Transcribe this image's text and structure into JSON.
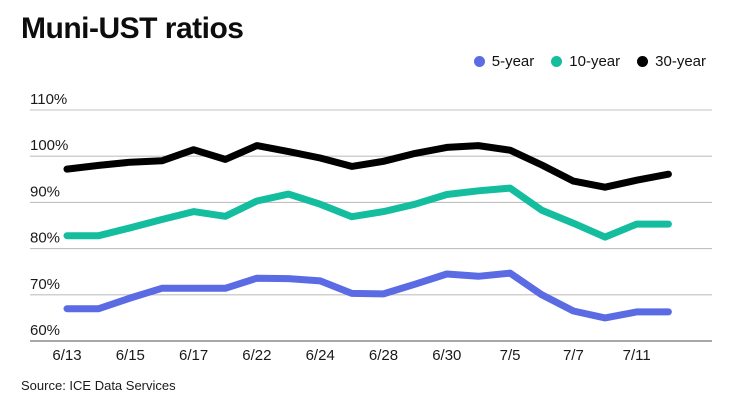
{
  "header": {
    "title": "Muni-UST ratios"
  },
  "legend": [
    {
      "label": "5-year",
      "color": "#5a6be4"
    },
    {
      "label": "10-year",
      "color": "#14bd9d"
    },
    {
      "label": "30-year",
      "color": "#000000"
    }
  ],
  "source": "Source: ICE Data Services",
  "colors": {
    "gridline": "#c0c0c0",
    "baseline": "#8c8c8c",
    "axis_text": "#1a1a1a",
    "background": "#ffffff"
  },
  "chart_data": {
    "type": "line",
    "title": "Muni-UST ratios",
    "xlabel": "",
    "ylabel": "",
    "ylim": [
      60,
      110
    ],
    "yticks": [
      60,
      70,
      80,
      90,
      100,
      110
    ],
    "ytick_suffix": "%",
    "grid": "horizontal",
    "legend_position": "top-right",
    "x": [
      "6/13",
      "6/14",
      "6/15",
      "6/16",
      "6/17",
      "6/21",
      "6/22",
      "6/23",
      "6/24",
      "6/27",
      "6/28",
      "6/29",
      "6/30",
      "7/1",
      "7/5",
      "7/6",
      "7/7",
      "7/8",
      "7/11",
      "7/12"
    ],
    "x_tick_labels": [
      "6/13",
      "6/15",
      "6/17",
      "6/22",
      "6/24",
      "6/28",
      "6/30",
      "7/5",
      "7/7",
      "7/11"
    ],
    "series": [
      {
        "name": "5-year",
        "color": "#5a6be4",
        "values": [
          67.0,
          67.0,
          69.3,
          71.4,
          71.4,
          71.4,
          73.6,
          73.5,
          73.0,
          70.3,
          70.2,
          72.3,
          74.5,
          74.0,
          74.7,
          70.0,
          66.5,
          65.0,
          66.3,
          66.3
        ]
      },
      {
        "name": "10-year",
        "color": "#14bd9d",
        "values": [
          82.8,
          82.8,
          84.5,
          86.3,
          88.0,
          87.0,
          90.3,
          91.8,
          89.6,
          86.9,
          88.0,
          89.6,
          91.7,
          92.5,
          93.1,
          88.3,
          85.5,
          82.5,
          85.3,
          85.3
        ]
      },
      {
        "name": "30-year",
        "color": "#000000",
        "values": [
          97.2,
          98.0,
          98.7,
          99.0,
          101.4,
          99.3,
          102.3,
          101.0,
          99.6,
          97.8,
          98.9,
          100.6,
          101.9,
          102.3,
          101.3,
          98.1,
          94.6,
          93.3,
          94.8,
          96.1
        ]
      }
    ]
  }
}
